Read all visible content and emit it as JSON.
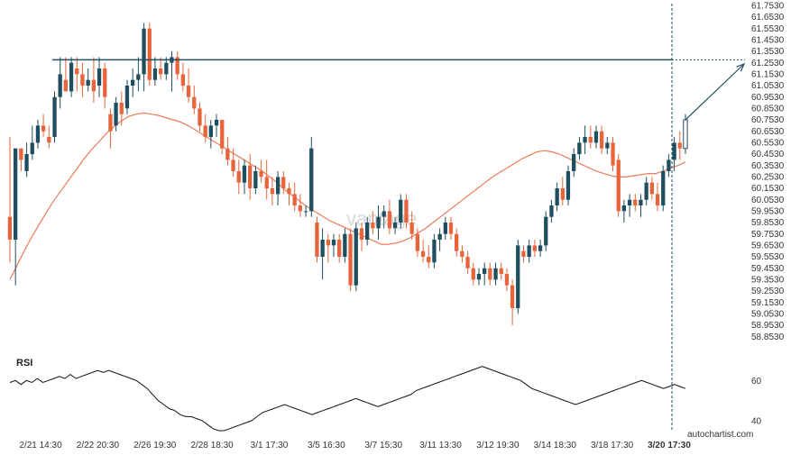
{
  "chart_data": [
    {
      "type": "candlestick",
      "title": "",
      "xlabel": "",
      "ylabel": "",
      "ylim": [
        58.753,
        61.753
      ],
      "y_ticks": [
        "61.7530",
        "61.6530",
        "61.5530",
        "61.4530",
        "61.3530",
        "61.2530",
        "61.1530",
        "61.0530",
        "60.9530",
        "60.8530",
        "60.7530",
        "60.6530",
        "60.5530",
        "60.4530",
        "60.3530",
        "60.2530",
        "60.1530",
        "60.0530",
        "59.9530",
        "59.8530",
        "59.7530",
        "59.6530",
        "59.5530",
        "59.4530",
        "59.3530",
        "59.2530",
        "59.1530",
        "59.0530",
        "58.9530",
        "58.8530"
      ],
      "x_ticks": [
        "2/21 14:30",
        "2/22 20:30",
        "2/26 19:30",
        "2/28 18:30",
        "3/1 17:30",
        "3/5 16:30",
        "3/7 15:30",
        "3/11 13:30",
        "3/12 19:30",
        "3/14 18:30",
        "3/18 17:30",
        "3/20 17:30"
      ],
      "highlight_tick": "3/20 17:30",
      "resistance_level": 61.276,
      "projection": {
        "from": 60.75,
        "to": 61.24
      },
      "ohlc": [
        [
          59.9,
          60.6,
          59.5,
          59.7
        ],
        [
          59.7,
          60.5,
          59.3,
          60.5
        ],
        [
          60.5,
          60.5,
          60.3,
          60.4
        ],
        [
          60.3,
          60.55,
          60.25,
          60.45
        ],
        [
          60.45,
          60.7,
          60.4,
          60.55
        ],
        [
          60.55,
          60.75,
          60.5,
          60.7
        ],
        [
          60.7,
          60.8,
          60.6,
          60.65
        ],
        [
          60.6,
          60.7,
          60.5,
          60.55
        ],
        [
          60.6,
          61.0,
          60.55,
          60.95
        ],
        [
          60.95,
          61.3,
          60.85,
          61.15
        ],
        [
          61.1,
          61.3,
          61.0,
          61.0
        ],
        [
          61.0,
          61.3,
          60.95,
          61.25
        ],
        [
          61.2,
          61.3,
          61.0,
          61.15
        ],
        [
          61.15,
          61.25,
          60.95,
          61.05
        ],
        [
          61.05,
          61.2,
          61.0,
          61.1
        ],
        [
          61.1,
          61.3,
          60.9,
          61.0
        ],
        [
          61.05,
          61.3,
          60.95,
          61.2
        ],
        [
          61.2,
          61.25,
          60.85,
          60.95
        ],
        [
          60.8,
          60.85,
          60.5,
          60.65
        ],
        [
          60.7,
          60.95,
          60.65,
          60.9
        ],
        [
          60.9,
          61.0,
          60.7,
          60.8
        ],
        [
          60.85,
          61.1,
          60.8,
          61.05
        ],
        [
          61.05,
          61.2,
          60.95,
          61.1
        ],
        [
          61.1,
          61.3,
          61.0,
          61.15
        ],
        [
          61.15,
          61.6,
          61.0,
          61.55
        ],
        [
          61.55,
          61.6,
          61.05,
          61.1
        ],
        [
          61.1,
          61.3,
          61.05,
          61.2
        ],
        [
          61.2,
          61.3,
          61.1,
          61.15
        ],
        [
          61.15,
          61.3,
          61.1,
          61.25
        ],
        [
          61.25,
          61.35,
          61.0,
          61.3
        ],
        [
          61.3,
          61.35,
          61.1,
          61.15
        ],
        [
          61.15,
          61.25,
          61.0,
          61.05
        ],
        [
          61.05,
          61.2,
          60.9,
          60.95
        ],
        [
          60.95,
          61.05,
          60.8,
          60.85
        ],
        [
          60.85,
          60.9,
          60.65,
          60.7
        ],
        [
          60.7,
          60.8,
          60.55,
          60.6
        ],
        [
          60.6,
          60.75,
          60.5,
          60.7
        ],
        [
          60.7,
          60.8,
          60.6,
          60.75
        ],
        [
          60.75,
          60.75,
          60.45,
          60.5
        ],
        [
          60.5,
          60.6,
          60.35,
          60.4
        ],
        [
          60.4,
          60.5,
          60.25,
          60.3
        ],
        [
          60.3,
          60.4,
          60.1,
          60.2
        ],
        [
          60.2,
          60.4,
          60.1,
          60.35
        ],
        [
          60.35,
          60.45,
          60.05,
          60.15
        ],
        [
          60.15,
          60.35,
          60.1,
          60.3
        ],
        [
          60.3,
          60.4,
          60.2,
          60.25
        ],
        [
          60.25,
          60.4,
          60.05,
          60.15
        ],
        [
          60.15,
          60.25,
          60.0,
          60.1
        ],
        [
          60.1,
          60.3,
          60.0,
          60.25
        ],
        [
          60.25,
          60.3,
          60.1,
          60.15
        ],
        [
          60.15,
          60.2,
          60.0,
          60.1
        ],
        [
          60.1,
          60.2,
          59.95,
          60.0
        ],
        [
          60.0,
          60.1,
          59.9,
          59.95
        ],
        [
          59.95,
          60.0,
          59.9,
          59.95
        ],
        [
          59.95,
          60.6,
          59.9,
          60.5
        ],
        [
          59.85,
          59.9,
          59.5,
          59.55
        ],
        [
          59.55,
          59.8,
          59.35,
          59.7
        ],
        [
          59.7,
          59.75,
          59.5,
          59.65
        ],
        [
          59.65,
          59.75,
          59.55,
          59.7
        ],
        [
          59.7,
          59.75,
          59.5,
          59.55
        ],
        [
          59.55,
          59.8,
          59.5,
          59.75
        ],
        [
          59.75,
          59.8,
          59.25,
          59.3
        ],
        [
          59.3,
          59.85,
          59.25,
          59.8
        ],
        [
          59.8,
          59.85,
          59.6,
          59.7
        ],
        [
          59.7,
          59.9,
          59.65,
          59.85
        ],
        [
          59.85,
          59.95,
          59.75,
          59.8
        ],
        [
          59.8,
          60.0,
          59.7,
          59.9
        ],
        [
          59.9,
          60.0,
          59.8,
          59.95
        ],
        [
          59.95,
          60.05,
          59.75,
          59.8
        ],
        [
          59.8,
          59.9,
          59.75,
          59.85
        ],
        [
          59.85,
          60.1,
          59.8,
          60.05
        ],
        [
          60.05,
          60.1,
          59.8,
          59.85
        ],
        [
          59.85,
          59.95,
          59.7,
          59.75
        ],
        [
          59.75,
          59.8,
          59.55,
          59.6
        ],
        [
          59.6,
          59.7,
          59.5,
          59.55
        ],
        [
          59.55,
          59.65,
          59.45,
          59.5
        ],
        [
          59.5,
          59.75,
          59.45,
          59.7
        ],
        [
          59.7,
          59.8,
          59.6,
          59.75
        ],
        [
          59.75,
          59.9,
          59.7,
          59.85
        ],
        [
          59.85,
          59.9,
          59.7,
          59.75
        ],
        [
          59.75,
          59.8,
          59.55,
          59.6
        ],
        [
          59.6,
          59.65,
          59.5,
          59.55
        ],
        [
          59.55,
          59.6,
          59.4,
          59.45
        ],
        [
          59.45,
          59.5,
          59.3,
          59.35
        ],
        [
          59.35,
          59.45,
          59.3,
          59.4
        ],
        [
          59.4,
          59.5,
          59.3,
          59.45
        ],
        [
          59.45,
          59.5,
          59.3,
          59.35
        ],
        [
          59.35,
          59.5,
          59.3,
          59.45
        ],
        [
          59.45,
          59.5,
          59.35,
          59.4
        ],
        [
          59.4,
          59.45,
          59.25,
          59.3
        ],
        [
          59.3,
          59.35,
          58.95,
          59.1
        ],
        [
          59.1,
          59.7,
          59.05,
          59.65
        ],
        [
          59.6,
          59.65,
          59.5,
          59.55
        ],
        [
          59.55,
          59.7,
          59.5,
          59.65
        ],
        [
          59.65,
          59.7,
          59.55,
          59.6
        ],
        [
          59.6,
          59.7,
          59.55,
          59.65
        ],
        [
          59.65,
          59.95,
          59.6,
          59.9
        ],
        [
          59.9,
          60.05,
          59.85,
          60.0
        ],
        [
          60.0,
          60.2,
          59.95,
          60.15
        ],
        [
          60.15,
          60.25,
          60.0,
          60.05
        ],
        [
          60.05,
          60.35,
          60.0,
          60.3
        ],
        [
          60.3,
          60.5,
          60.25,
          60.45
        ],
        [
          60.45,
          60.6,
          60.4,
          60.55
        ],
        [
          60.55,
          60.7,
          60.45,
          60.6
        ],
        [
          60.6,
          60.7,
          60.5,
          60.55
        ],
        [
          60.55,
          60.7,
          60.5,
          60.65
        ],
        [
          60.65,
          60.7,
          60.45,
          60.5
        ],
        [
          60.5,
          60.6,
          60.45,
          60.55
        ],
        [
          60.55,
          60.6,
          60.3,
          60.35
        ],
        [
          60.4,
          60.45,
          59.9,
          59.95
        ],
        [
          59.95,
          60.05,
          59.85,
          60.0
        ],
        [
          60.0,
          60.1,
          59.9,
          60.05
        ],
        [
          60.05,
          60.1,
          59.95,
          60.0
        ],
        [
          60.0,
          60.1,
          59.9,
          60.05
        ],
        [
          60.05,
          60.25,
          60.0,
          60.2
        ],
        [
          60.2,
          60.25,
          60.05,
          60.1
        ],
        [
          60.1,
          60.2,
          59.95,
          60.0
        ],
        [
          60.0,
          60.35,
          59.95,
          60.3
        ],
        [
          60.3,
          60.45,
          60.25,
          60.4
        ],
        [
          60.4,
          60.6,
          60.3,
          60.55
        ],
        [
          60.55,
          60.65,
          60.4,
          60.5
        ],
        [
          60.5,
          60.8,
          60.45,
          60.75
        ]
      ],
      "moving_average": [
        59.35,
        59.48,
        59.61,
        59.73,
        59.84,
        59.95,
        60.05,
        60.14,
        60.23,
        60.32,
        60.41,
        60.49,
        60.56,
        60.63,
        60.69,
        60.74,
        60.78,
        60.8,
        60.81,
        60.8,
        60.79,
        60.77,
        60.75,
        60.73,
        60.7,
        60.66,
        60.62,
        60.58,
        60.54,
        60.5,
        60.46,
        60.42,
        60.38,
        60.34,
        60.3,
        60.25,
        60.2,
        60.14,
        60.09,
        60.04,
        59.99,
        59.95,
        59.91,
        59.87,
        59.84,
        59.81,
        59.78,
        59.75,
        59.72,
        59.69,
        59.66,
        59.66,
        59.67,
        59.69,
        59.72,
        59.76,
        59.8,
        59.85,
        59.9,
        59.95,
        60.0,
        60.05,
        60.1,
        60.15,
        60.2,
        60.25,
        60.29,
        60.33,
        60.37,
        60.41,
        60.44,
        60.47,
        60.48,
        60.47,
        60.45,
        60.42,
        60.39,
        60.36,
        60.33,
        60.3,
        60.28,
        60.26,
        60.25,
        60.25,
        60.26,
        60.27,
        60.28,
        60.28,
        60.3,
        60.33,
        60.35,
        60.38
      ],
      "credit": "autochartist.com",
      "watermark": "vantage"
    },
    {
      "type": "line",
      "title": "RSI",
      "ylabel": "",
      "y_ticks": [
        "60",
        "40"
      ],
      "ylim": [
        35,
        70
      ],
      "values": [
        59,
        60,
        58,
        60,
        59,
        61,
        59,
        60,
        61,
        62,
        61,
        63,
        61,
        62,
        63,
        64,
        65,
        64,
        65,
        64,
        63,
        62,
        61,
        60,
        58,
        56,
        53,
        50,
        48,
        46,
        45,
        43,
        42,
        42,
        41,
        40,
        38,
        36,
        35,
        35,
        36,
        37,
        38,
        39,
        40,
        42,
        44,
        45,
        46,
        47,
        48,
        47,
        46,
        45,
        44,
        43,
        44,
        45,
        46,
        47,
        48,
        49,
        50,
        51,
        50,
        49,
        48,
        47,
        48,
        49,
        50,
        51,
        52,
        53,
        55,
        56,
        57,
        58,
        59,
        60,
        61,
        62,
        63,
        64,
        65,
        66,
        67,
        66,
        65,
        64,
        63,
        62,
        61,
        60,
        58,
        56,
        55,
        54,
        53,
        52,
        51,
        50,
        49,
        48,
        49,
        50,
        51,
        52,
        53,
        54,
        55,
        56,
        57,
        58,
        59,
        60,
        59,
        58,
        57,
        56,
        57,
        58,
        57,
        56
      ]
    }
  ]
}
